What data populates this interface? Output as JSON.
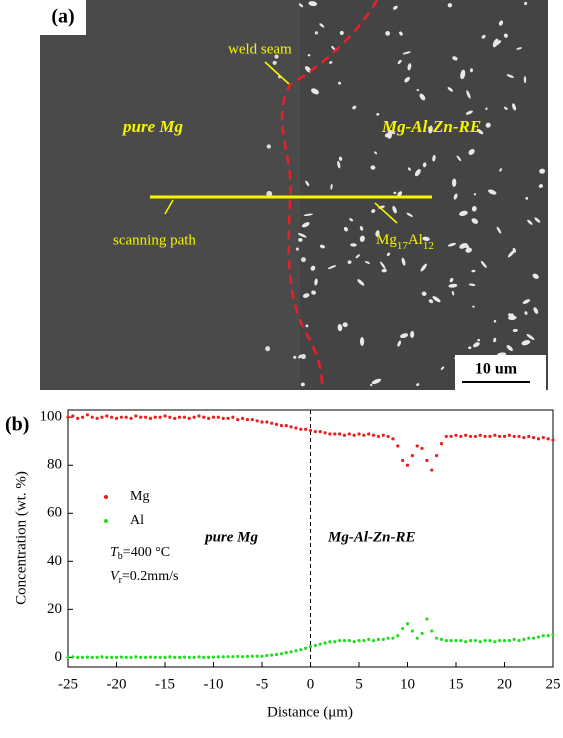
{
  "micrograph": {
    "panel_label": "(a)",
    "weld_label": "weld seam",
    "left_label": "pure Mg",
    "right_label": "Mg-Al-Zn-RE",
    "path_label": "scanning path",
    "phase": [
      "Mg",
      "17",
      "Al",
      "12"
    ],
    "scale_label": "10 um"
  },
  "chart_data": {
    "type": "scatter",
    "panel_label": "(b)",
    "xlabel": "Distance (μm)",
    "ylabel": "Concentration (wt. %)",
    "annotations": {
      "left": "pure Mg",
      "right": "Mg-Al-Zn-RE",
      "temp": [
        "T",
        "b",
        "=400 °C"
      ],
      "speed": [
        "V",
        "r",
        "=0.2mm/s"
      ]
    },
    "vline": 0,
    "xlim": [
      -25,
      25
    ],
    "xticks": [
      -25,
      -20,
      -15,
      -10,
      -5,
      0,
      5,
      10,
      15,
      20,
      25
    ],
    "ylim": [
      -4,
      103
    ],
    "yticks": [
      0,
      20,
      40,
      60,
      80,
      100
    ],
    "x": [
      -25,
      -24.5,
      -24,
      -23.5,
      -23,
      -22.5,
      -22,
      -21.5,
      -21,
      -20.5,
      -20,
      -19.5,
      -19,
      -18.5,
      -18,
      -17.5,
      -17,
      -16.5,
      -16,
      -15.5,
      -15,
      -14.5,
      -14,
      -13.5,
      -13,
      -12.5,
      -12,
      -11.5,
      -11,
      -10.5,
      -10,
      -9.5,
      -9,
      -8.5,
      -8,
      -7.5,
      -7,
      -6.5,
      -6,
      -5.5,
      -5,
      -4.5,
      -4,
      -3.5,
      -3,
      -2.5,
      -2,
      -1.5,
      -1,
      -0.5,
      0,
      0.5,
      1,
      1.5,
      2,
      2.5,
      3,
      3.5,
      4,
      4.5,
      5,
      5.5,
      6,
      6.5,
      7,
      7.5,
      8,
      8.5,
      9,
      9.5,
      10,
      10.5,
      11,
      11.5,
      12,
      12.5,
      13,
      13.5,
      14,
      14.5,
      15,
      15.5,
      16,
      16.5,
      17,
      17.5,
      18,
      18.5,
      19,
      19.5,
      20,
      20.5,
      21,
      21.5,
      22,
      22.5,
      23,
      23.5,
      24,
      24.5,
      25
    ],
    "series": [
      {
        "name": "Mg",
        "color": "#ee1c1c",
        "values": [
          100,
          100.5,
          99.5,
          100,
          101,
          100,
          99.5,
          100,
          100.5,
          100,
          99.5,
          100,
          100,
          99.5,
          100.5,
          100,
          100,
          99.5,
          100,
          100,
          100.5,
          100,
          99.5,
          100,
          100,
          99.5,
          100,
          100.5,
          100,
          99.5,
          100,
          100,
          99.5,
          99.5,
          100,
          99,
          99.5,
          99,
          99,
          98.5,
          98,
          98,
          97.5,
          97,
          96.5,
          96.5,
          96,
          95.5,
          95,
          95,
          94.5,
          94,
          94,
          93.5,
          93,
          93,
          93,
          92.5,
          93,
          92.5,
          93,
          92.5,
          93,
          92.5,
          92,
          92.5,
          92,
          91,
          88,
          82,
          80,
          84,
          88,
          87,
          82,
          78,
          84,
          89,
          92,
          92,
          92.5,
          92,
          92.5,
          92,
          92,
          92.5,
          92,
          92,
          92.5,
          92,
          92,
          92.5,
          92,
          92,
          91.5,
          92,
          91.5,
          91,
          91.5,
          91,
          90.5
        ]
      },
      {
        "name": "Al",
        "color": "#22dd22",
        "values": [
          0,
          0.2,
          0,
          0,
          0.1,
          0,
          0,
          0.2,
          0,
          0,
          0,
          0.1,
          0,
          0,
          0.2,
          0,
          0,
          0.1,
          0,
          0,
          0,
          0.2,
          0,
          0,
          0.1,
          0,
          0,
          0.2,
          0,
          0,
          0.1,
          0.2,
          0.2,
          0.3,
          0.3,
          0.4,
          0.3,
          0.4,
          0.5,
          0.5,
          0.5,
          0.8,
          1,
          1.2,
          1.5,
          2,
          2.3,
          2.8,
          3.2,
          3.8,
          4.5,
          5,
          5.5,
          6,
          6.5,
          6.5,
          7,
          7,
          7,
          6.5,
          7,
          7,
          7.5,
          7,
          7.5,
          7.5,
          8,
          8,
          9,
          12,
          14,
          11,
          8,
          10,
          16,
          11,
          8,
          7.5,
          7,
          7,
          7,
          7,
          6.5,
          7,
          7,
          6.5,
          7,
          7,
          6.5,
          7,
          7,
          7,
          7.5,
          7,
          7.5,
          8,
          8,
          8.5,
          9,
          9,
          9.5
        ]
      }
    ]
  }
}
